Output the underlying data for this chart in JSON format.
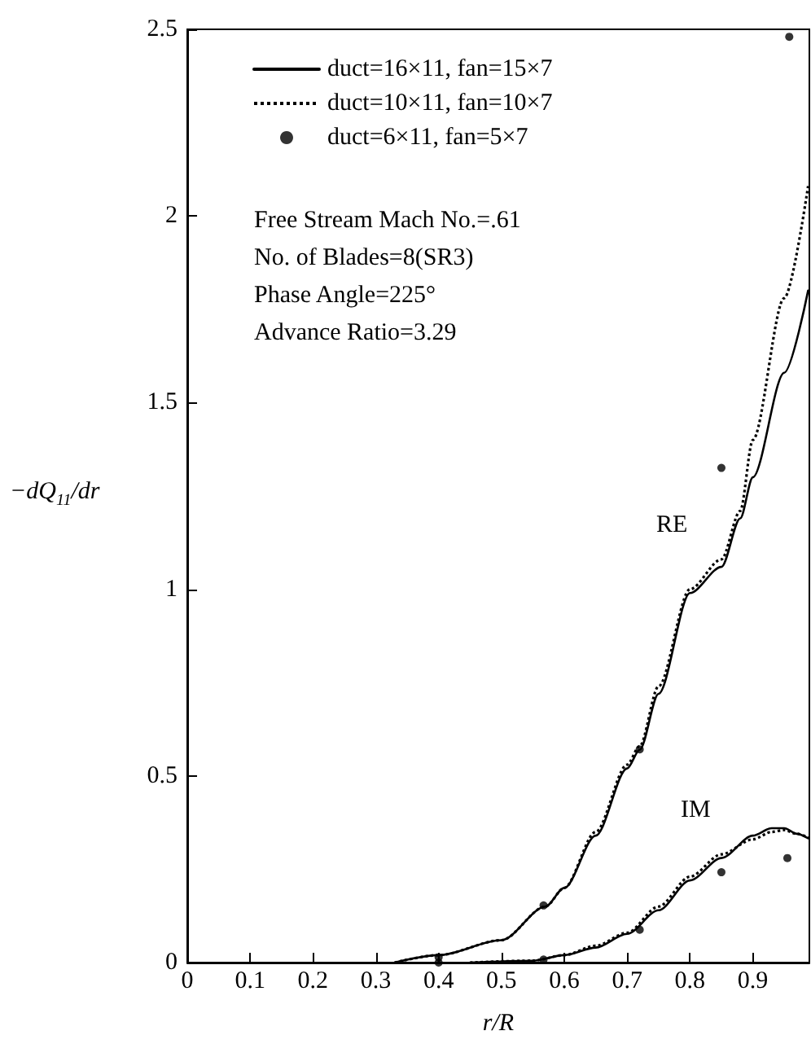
{
  "chart_data": {
    "type": "line",
    "xlabel": "r/R",
    "ylabel": "−dQ$_{11}$/dr",
    "xlim": [
      0,
      0.99
    ],
    "xticks": [
      0,
      0.1,
      0.2,
      0.3,
      0.4,
      0.5,
      0.6,
      0.7,
      0.8,
      0.9
    ],
    "ylim": [
      0,
      2.5
    ],
    "yticks": [
      0,
      0.5,
      1,
      1.5,
      2,
      2.5
    ],
    "grid": false,
    "legend": "top left",
    "series": [
      {
        "name": "duct=16×11, fan=15×7",
        "color": "#000000",
        "line_style": "solid",
        "marker": "none",
        "x": [
          0.33,
          0.4,
          0.5,
          0.57,
          0.6,
          0.65,
          0.7,
          0.72,
          0.75,
          0.8,
          0.85,
          0.88,
          0.9,
          0.95,
          0.988
        ],
        "values": [
          0,
          0.02,
          0.06,
          0.15,
          0.2,
          0.34,
          0.52,
          0.57,
          0.72,
          0.99,
          1.06,
          1.19,
          1.3,
          1.58,
          1.8
        ]
      },
      {
        "color": "#000000",
        "line_style": "solid",
        "marker": "none",
        "x": [
          0.45,
          0.55,
          0.6,
          0.65,
          0.7,
          0.75,
          0.8,
          0.85,
          0.9,
          0.93,
          0.95,
          0.97,
          0.988
        ],
        "values": [
          0,
          0.005,
          0.02,
          0.04,
          0.077,
          0.14,
          0.22,
          0.28,
          0.34,
          0.36,
          0.36,
          0.345,
          0.333
        ]
      },
      {
        "name": "duct=10×11, fan=10×7",
        "color": "#000000",
        "line_style": "dotted",
        "marker": "none",
        "x": [
          0.33,
          0.4,
          0.5,
          0.57,
          0.6,
          0.65,
          0.7,
          0.72,
          0.75,
          0.8,
          0.85,
          0.88,
          0.9,
          0.95,
          0.988
        ],
        "values": [
          0,
          0.02,
          0.06,
          0.15,
          0.2,
          0.35,
          0.53,
          0.58,
          0.74,
          1.0,
          1.08,
          1.21,
          1.4,
          1.78,
          2.08
        ]
      },
      {
        "color": "#000000",
        "line_style": "dotted",
        "marker": "none",
        "x": [
          0.45,
          0.55,
          0.6,
          0.65,
          0.7,
          0.75,
          0.8,
          0.85,
          0.9,
          0.93,
          0.95,
          0.97,
          0.988
        ],
        "values": [
          0,
          0.005,
          0.02,
          0.045,
          0.08,
          0.15,
          0.23,
          0.29,
          0.33,
          0.35,
          0.355,
          0.345,
          0.335
        ]
      },
      {
        "name": "duct=6×11, fan=5×7",
        "type": "scatter",
        "color": "#000000",
        "marker": "circle",
        "x": [
          0.4,
          0.567,
          0.72,
          0.85,
          0.958,
          0.4,
          0.567,
          0.72,
          0.85,
          0.955
        ],
        "values": [
          0.014,
          0.153,
          0.571,
          1.325,
          2.48,
          0.0,
          0.008,
          0.088,
          0.242,
          0.28
        ]
      }
    ],
    "annotations": [
      "Free Stream Mach No.=.61",
      "No. of Blades=8(SR3)",
      "Phase Angle=225°",
      "Advance Ratio=3.29",
      "RE",
      "IM"
    ]
  }
}
